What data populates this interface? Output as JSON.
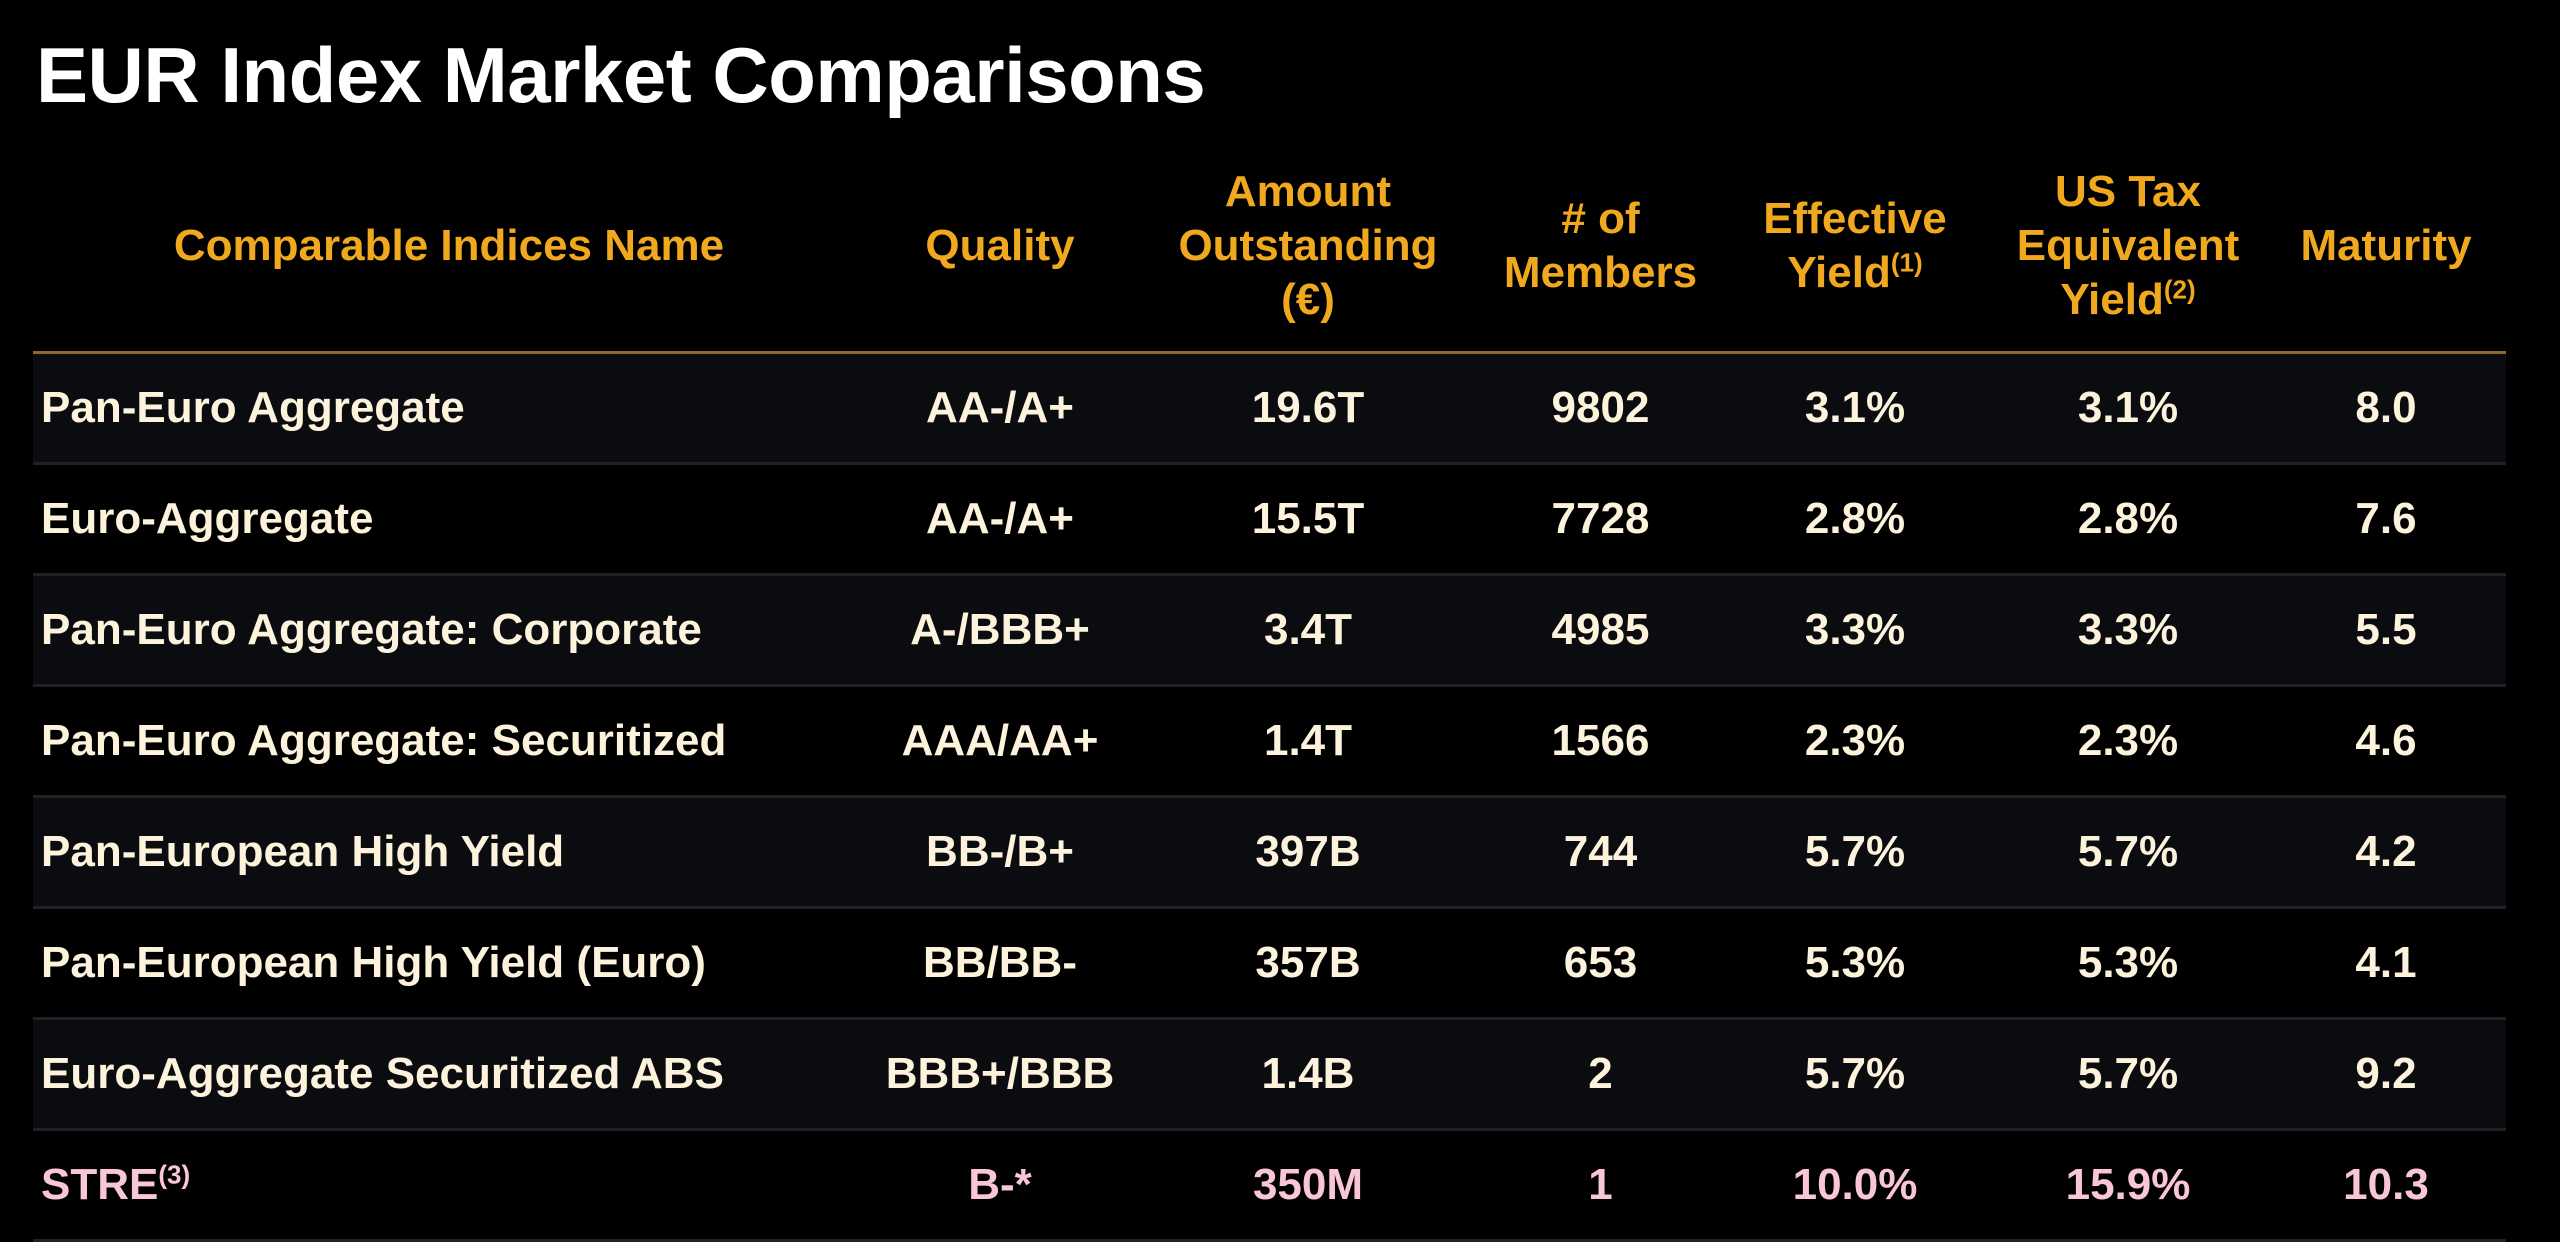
{
  "title": "EUR Index Market Comparisons",
  "colors": {
    "header": "#f0a81e",
    "body_text": "#fdf3dc",
    "highlight_row": "#f9c6d6",
    "background": "#000000"
  },
  "headers": [
    {
      "text": "Comparable Indices Name",
      "sup": ""
    },
    {
      "text": "Quality",
      "sup": ""
    },
    {
      "text": "Amount Outstanding (€)",
      "sup": ""
    },
    {
      "text": "# of Members",
      "sup": ""
    },
    {
      "text": "Effective Yield",
      "sup": "(1)"
    },
    {
      "text": "US Tax Equivalent Yield",
      "sup": "(2)"
    },
    {
      "text": "Maturity",
      "sup": ""
    }
  ],
  "rows": [
    {
      "name": "Pan-Euro Aggregate",
      "sup": "",
      "quality": "AA-/A+",
      "amount": "19.6T",
      "members": "9802",
      "effective_yield": "3.1%",
      "tax_equiv_yield": "3.1%",
      "maturity": "8.0"
    },
    {
      "name": "Euro-Aggregate",
      "sup": "",
      "quality": "AA-/A+",
      "amount": "15.5T",
      "members": "7728",
      "effective_yield": "2.8%",
      "tax_equiv_yield": "2.8%",
      "maturity": "7.6"
    },
    {
      "name": "Pan-Euro Aggregate: Corporate",
      "sup": "",
      "quality": "A-/BBB+",
      "amount": "3.4T",
      "members": "4985",
      "effective_yield": "3.3%",
      "tax_equiv_yield": "3.3%",
      "maturity": "5.5"
    },
    {
      "name": "Pan-Euro Aggregate: Securitized",
      "sup": "",
      "quality": "AAA/AA+",
      "amount": "1.4T",
      "members": "1566",
      "effective_yield": "2.3%",
      "tax_equiv_yield": "2.3%",
      "maturity": "4.6"
    },
    {
      "name": "Pan-European High Yield",
      "sup": "",
      "quality": "BB-/B+",
      "amount": "397B",
      "members": "744",
      "effective_yield": "5.7%",
      "tax_equiv_yield": "5.7%",
      "maturity": "4.2"
    },
    {
      "name": "Pan-European High Yield (Euro)",
      "sup": "",
      "quality": "BB/BB-",
      "amount": "357B",
      "members": "653",
      "effective_yield": "5.3%",
      "tax_equiv_yield": "5.3%",
      "maturity": "4.1"
    },
    {
      "name": "Euro-Aggregate Securitized ABS",
      "sup": "",
      "quality": "BBB+/BBB",
      "amount": "1.4B",
      "members": "2",
      "effective_yield": "5.7%",
      "tax_equiv_yield": "5.7%",
      "maturity": "9.2"
    },
    {
      "name": "STRE",
      "sup": "(3)",
      "quality": "B-*",
      "amount": "350M",
      "members": "1",
      "effective_yield": "10.0%",
      "tax_equiv_yield": "15.9%",
      "maturity": "10.3"
    }
  ]
}
